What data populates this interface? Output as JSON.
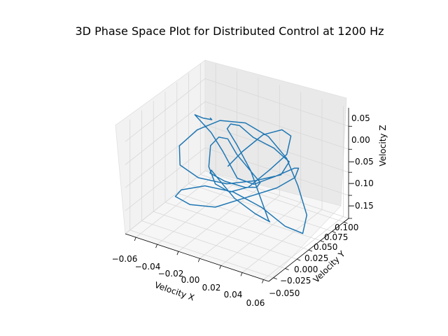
{
  "chart_data": {
    "type": "line",
    "projection": "3d",
    "title": "3D Phase Space Plot for Distributed Control at 1200 Hz",
    "xlabel": "Velocity X",
    "ylabel": "Velocity Y",
    "zlabel": "Velocity Z",
    "xlim": [
      -0.07,
      0.065
    ],
    "ylim": [
      -0.06,
      0.11
    ],
    "zlim": [
      -0.15,
      0.09
    ],
    "xticks": [
      "−0.06",
      "−0.04",
      "−0.02",
      "0.00",
      "0.02",
      "0.04",
      "0.06"
    ],
    "yticks": [
      "−0.050",
      "−0.025",
      "0.000",
      "0.025",
      "0.050",
      "0.075",
      "0.100"
    ],
    "zticks": [
      "−0.15",
      "−0.10",
      "−0.05",
      "0.00",
      "0.05"
    ],
    "grid": true,
    "series": [
      {
        "color": "#1f77b4",
        "points": [
          [
            -0.03,
            0.03,
            0.06
          ],
          [
            -0.035,
            0.045,
            0.04
          ],
          [
            -0.05,
            0.06,
            0.02
          ],
          [
            -0.062,
            0.07,
            0.01
          ],
          [
            -0.04,
            0.055,
            0.0
          ],
          [
            -0.02,
            0.035,
            -0.01
          ],
          [
            0.0,
            0.02,
            -0.04
          ],
          [
            0.02,
            0.01,
            -0.03
          ],
          [
            0.035,
            0.02,
            -0.01
          ],
          [
            0.045,
            0.04,
            0.0
          ],
          [
            0.04,
            0.06,
            -0.02
          ],
          [
            0.03,
            0.075,
            -0.06
          ],
          [
            0.015,
            0.07,
            -0.09
          ],
          [
            -0.005,
            0.05,
            -0.11
          ],
          [
            -0.025,
            0.03,
            -0.13
          ],
          [
            -0.04,
            0.01,
            -0.12
          ],
          [
            -0.045,
            -0.01,
            -0.09
          ],
          [
            -0.035,
            -0.02,
            -0.06
          ],
          [
            -0.015,
            -0.015,
            -0.04
          ],
          [
            0.005,
            0.0,
            -0.05
          ],
          [
            0.025,
            0.015,
            -0.08
          ],
          [
            0.045,
            0.02,
            -0.11
          ],
          [
            0.055,
            0.035,
            -0.13
          ],
          [
            0.05,
            0.055,
            -0.11
          ],
          [
            0.035,
            0.07,
            -0.07
          ],
          [
            0.02,
            0.08,
            -0.03
          ],
          [
            0.005,
            0.075,
            0.01
          ],
          [
            -0.01,
            0.06,
            0.04
          ],
          [
            -0.025,
            0.04,
            0.05
          ],
          [
            -0.04,
            0.025,
            0.03
          ],
          [
            -0.05,
            0.01,
            0.0
          ],
          [
            -0.045,
            0.0,
            -0.03
          ],
          [
            -0.03,
            0.005,
            -0.05
          ],
          [
            -0.01,
            0.02,
            -0.06
          ],
          [
            0.01,
            0.035,
            -0.05
          ],
          [
            0.03,
            0.045,
            -0.03
          ],
          [
            0.04,
            0.04,
            0.01
          ],
          [
            0.03,
            0.03,
            0.04
          ],
          [
            0.015,
            0.02,
            0.06
          ],
          [
            0.0,
            0.025,
            0.07
          ],
          [
            -0.015,
            0.04,
            0.05
          ],
          [
            -0.025,
            0.055,
            0.02
          ],
          [
            -0.02,
            0.065,
            -0.02
          ],
          [
            -0.005,
            0.06,
            -0.06
          ],
          [
            0.01,
            0.045,
            -0.09
          ],
          [
            0.025,
            0.03,
            -0.12
          ],
          [
            0.035,
            0.01,
            -0.1
          ],
          [
            0.03,
            -0.01,
            -0.07
          ],
          [
            0.015,
            -0.02,
            -0.04
          ],
          [
            -0.005,
            -0.01,
            -0.02
          ],
          [
            -0.02,
            0.01,
            -0.03
          ],
          [
            -0.03,
            0.03,
            -0.06
          ],
          [
            -0.025,
            0.05,
            -0.09
          ],
          [
            -0.01,
            0.06,
            -0.1
          ],
          [
            0.005,
            0.05,
            -0.08
          ],
          [
            0.015,
            0.035,
            -0.05
          ],
          [
            0.01,
            0.025,
            -0.02
          ],
          [
            -0.005,
            0.03,
            0.0
          ],
          [
            -0.02,
            0.045,
            0.01
          ],
          [
            -0.035,
            0.06,
            -0.01
          ],
          [
            -0.045,
            0.065,
            -0.04
          ],
          [
            -0.04,
            0.05,
            -0.07
          ],
          [
            -0.025,
            0.03,
            -0.08
          ],
          [
            -0.005,
            0.015,
            -0.07
          ],
          [
            0.015,
            0.01,
            -0.04
          ],
          [
            0.03,
            0.02,
            0.0
          ],
          [
            0.04,
            0.035,
            0.03
          ],
          [
            0.035,
            0.055,
            0.05
          ],
          [
            0.02,
            0.07,
            0.04
          ],
          [
            0.0,
            0.075,
            0.01
          ],
          [
            -0.015,
            0.065,
            -0.03
          ],
          [
            -0.02,
            0.045,
            -0.05
          ]
        ]
      }
    ]
  }
}
